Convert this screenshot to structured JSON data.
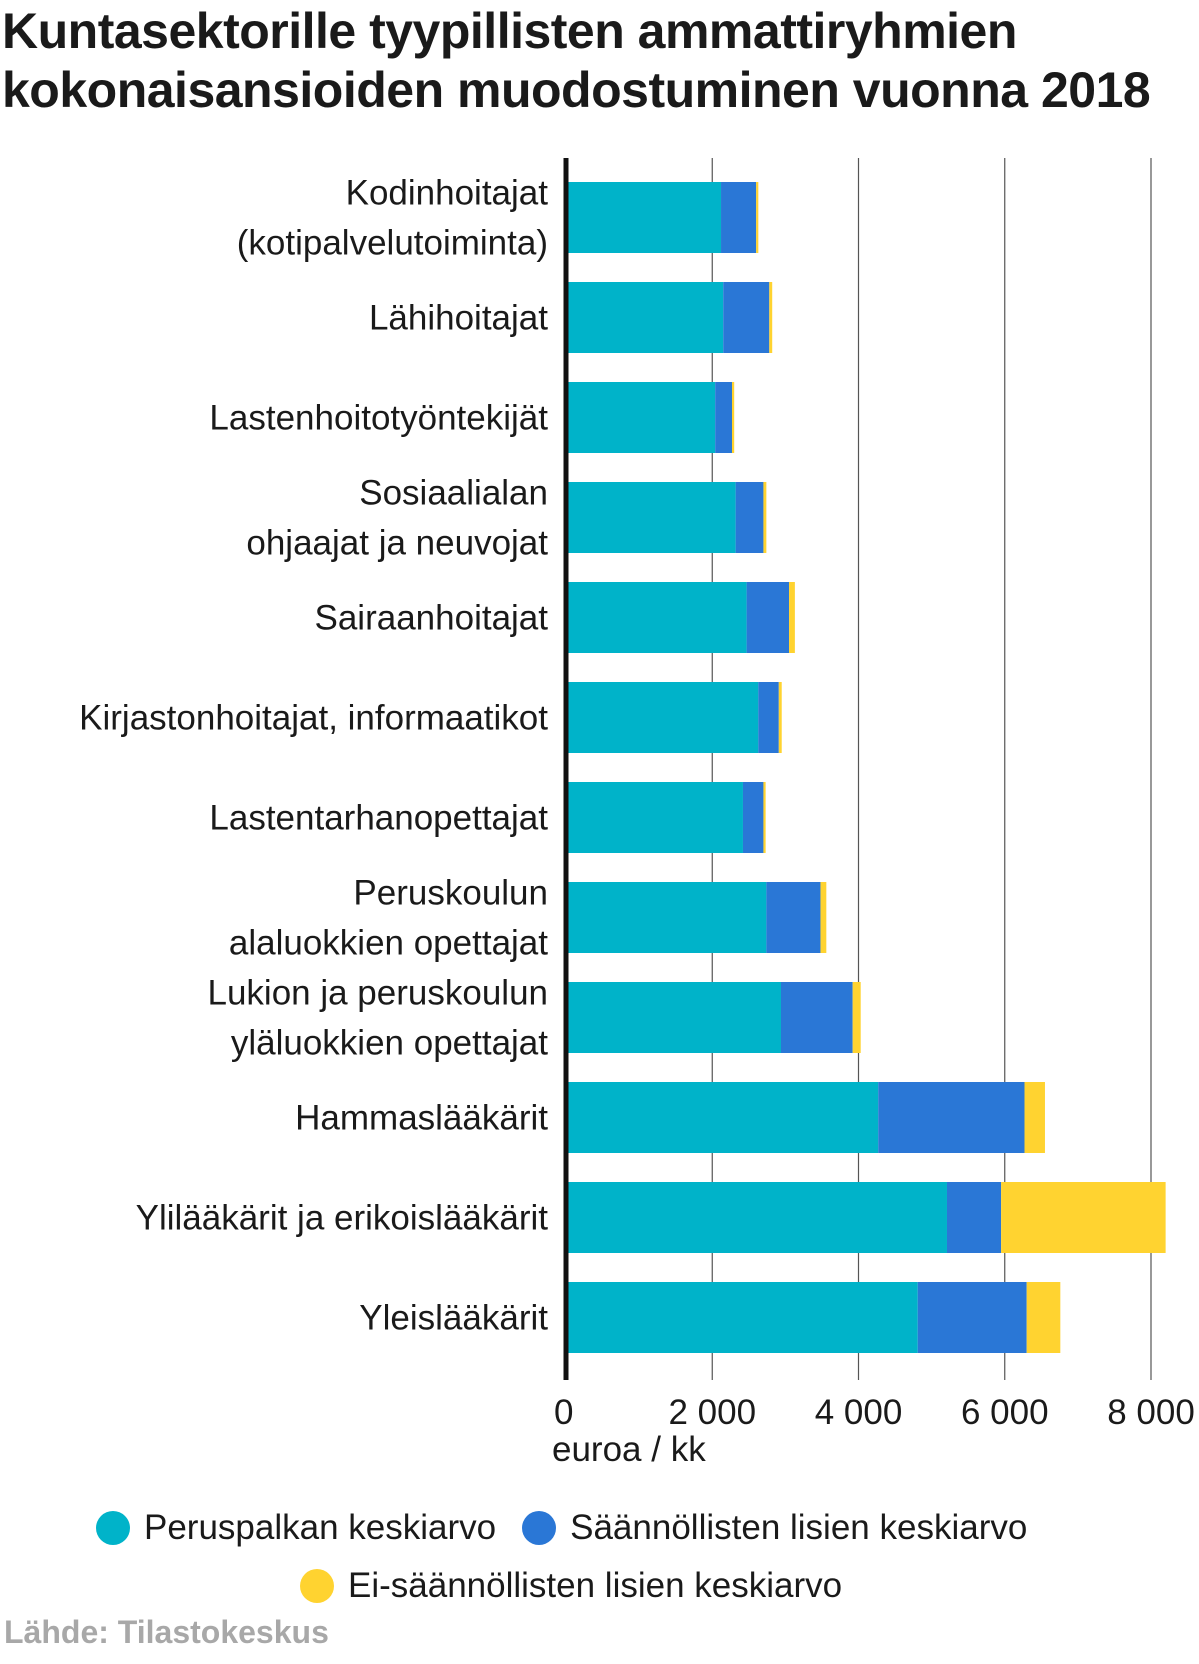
{
  "title_lines": [
    "Kuntasektorille tyypillisten ammattiryhmien",
    "kokonaisansioiden muodostuminen vuonna 2018"
  ],
  "source": "Lähde: Tilastokeskus",
  "chart_data": {
    "type": "bar",
    "orientation": "horizontal",
    "stacked": true,
    "title": "Kuntasektorille tyypillisten ammattiryhmien kokonaisansioiden muodostuminen vuonna 2018",
    "xlabel": "euroa / kk",
    "ylabel": "",
    "xlim": [
      0,
      8000
    ],
    "xticks": [
      0,
      2000,
      4000,
      6000,
      8000
    ],
    "xtick_labels": [
      "0",
      "2 000",
      "4 000",
      "6 000",
      "8 000"
    ],
    "grid": true,
    "legend_position": "bottom",
    "categories": [
      [
        "Kodinhoitajat",
        "(kotipalvelutoiminta)"
      ],
      [
        "Lähihoitajat"
      ],
      [
        "Lastenhoitotyöntekijät"
      ],
      [
        "Sosiaalialan",
        "ohjaajat ja neuvojat"
      ],
      [
        "Sairaanhoitajat"
      ],
      [
        "Kirjastonhoitajat, informaatikot"
      ],
      [
        "Lastentarhanopettajat"
      ],
      [
        "Peruskoulun",
        "alaluokkien opettajat"
      ],
      [
        "Lukion ja peruskoulun",
        "yläluokkien opettajat"
      ],
      [
        "Hammaslääkärit"
      ],
      [
        "Ylilääkärit ja erikoislääkärit"
      ],
      [
        "Yleislääkärit"
      ]
    ],
    "series": [
      {
        "name": "Peruspalkan keskiarvo",
        "color": "#00b3c9",
        "values": [
          2120,
          2150,
          2040,
          2320,
          2470,
          2630,
          2420,
          2740,
          2940,
          4270,
          5210,
          4810
        ]
      },
      {
        "name": "Säännöllisten lisien keskiarvo",
        "color": "#2a77d6",
        "values": [
          480,
          630,
          230,
          380,
          580,
          280,
          280,
          740,
          980,
          2000,
          740,
          1490
        ]
      },
      {
        "name": "Ei-säännöllisten lisien keskiarvo",
        "color": "#ffd330",
        "values": [
          30,
          40,
          30,
          40,
          80,
          40,
          30,
          80,
          110,
          280,
          2250,
          460
        ]
      }
    ]
  }
}
